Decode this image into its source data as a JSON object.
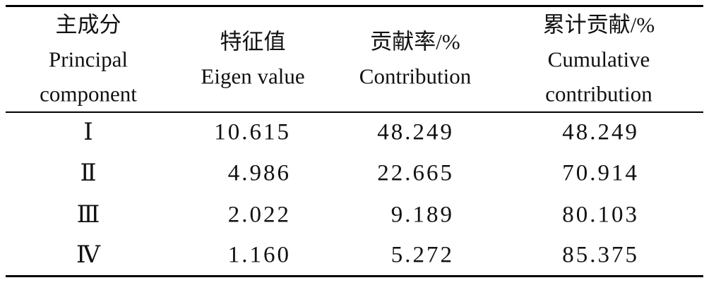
{
  "table": {
    "header": [
      {
        "lines": [
          "主成分",
          "Principal",
          "component"
        ]
      },
      {
        "lines": [
          "特征值",
          "Eigen value"
        ]
      },
      {
        "lines": [
          "贡献率/%",
          "Contribution"
        ]
      },
      {
        "lines": [
          "累计贡献/%",
          "Cumulative",
          "contribution"
        ]
      }
    ],
    "rows": [
      [
        "Ⅰ",
        "10.615",
        "48.249",
        "48.249"
      ],
      [
        "Ⅱ",
        "4.986",
        "22.665",
        "70.914"
      ],
      [
        "Ⅲ",
        "2.022",
        "9.189",
        "80.103"
      ],
      [
        "Ⅳ",
        "1.160",
        "5.272",
        "85.375"
      ]
    ]
  }
}
